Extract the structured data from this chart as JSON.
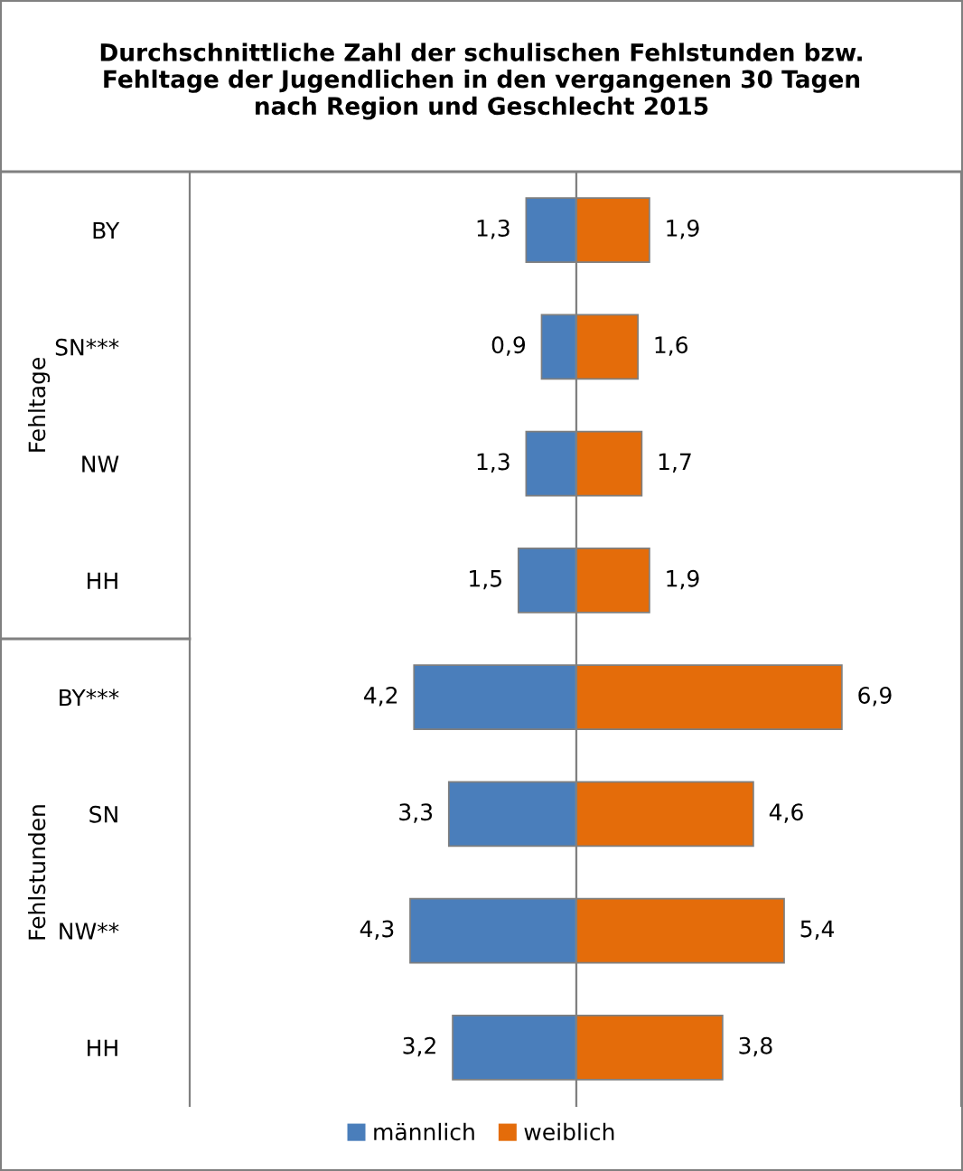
{
  "chart_data": [
    {
      "type": "bar",
      "orientation": "horizontal",
      "title": "Durchschnittliche Zahl der schulischen Fehlstunden bzw.\nFehltage der Jugendlichen in den vergangenen 30 Tagen\nnach Region und Geschlecht 2015",
      "categories": [
        "BY",
        "SN***",
        "NW",
        "HH",
        "BY***",
        "SN",
        "NW**",
        "HH"
      ],
      "annotations": [
        "Fehltage",
        "Fehlstunden"
      ],
      "xlim": [
        10,
        0
      ],
      "tick_labels": "y",
      "legend": "bottom",
      "grid": false,
      "series": [
        {
          "name": "männlich",
          "color": "#4a7ebb",
          "values": [
            1.3,
            0.9,
            1.3,
            1.5,
            4.2,
            3.3,
            4.3,
            3.2
          ],
          "value_labels": [
            "1,3",
            "0,9",
            "1,3",
            "1,5",
            "4,2",
            "3,3",
            "4,3",
            "3,2"
          ]
        }
      ]
    },
    {
      "type": "bar",
      "orientation": "horizontal",
      "categories": [
        null,
        null,
        null,
        null,
        null,
        null,
        null,
        null
      ],
      "xlim": [
        0,
        10
      ],
      "tick_labels": false,
      "legend": "bottom",
      "grid": false,
      "series": [
        {
          "name": "weiblich",
          "color": "#e46c0a",
          "values": [
            1.9,
            1.6,
            1.7,
            1.9,
            6.9,
            4.6,
            5.4,
            3.8
          ],
          "value_labels": [
            "1,9",
            "1,6",
            "1,7",
            "1,9",
            "6,9",
            "4,6",
            "5,4",
            "3,8"
          ]
        }
      ]
    }
  ]
}
